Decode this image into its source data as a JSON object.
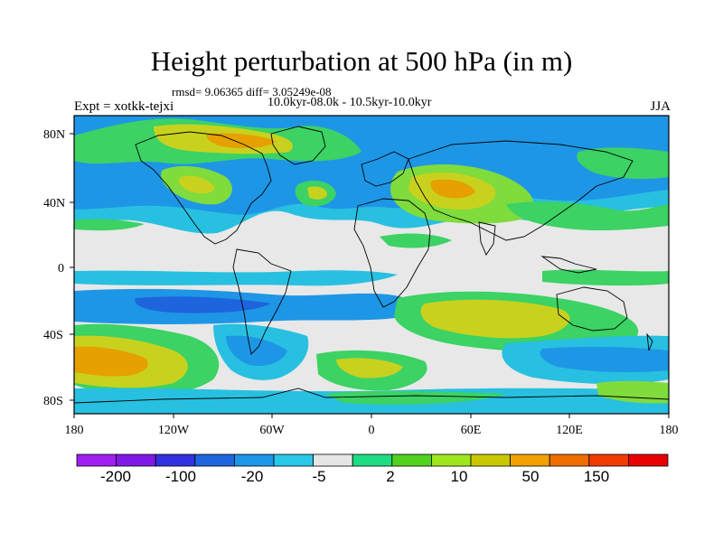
{
  "title": "Height perturbation at 500 hPa (in m)",
  "stats": "rmsd= 9.06365 diff= 3.05249e-08",
  "expt": "Expt = xotkk-tejxi",
  "period": "10.0kyr-08.0k - 10.5kyr-10.0kyr",
  "season": "JJA",
  "lat_ticks": [
    "80N",
    "40N",
    "0",
    "40S",
    "80S"
  ],
  "lon_ticks": [
    "180",
    "120W",
    "60W",
    "0",
    "60E",
    "120E",
    "180"
  ],
  "colorbar": {
    "colors": [
      "#a020f0",
      "#7f1ae6",
      "#3232e0",
      "#1e64dc",
      "#1e96e6",
      "#28c8e6",
      "#e6e6e6",
      "#1edc82",
      "#50d21e",
      "#a0e61e",
      "#c8c800",
      "#f0a000",
      "#f06e00",
      "#f03c00",
      "#e60000"
    ],
    "labels": [
      "-200",
      "-100",
      "-20",
      "-5",
      "2",
      "10",
      "50",
      "150"
    ]
  },
  "palette": {
    "neutral": "#e8e8e8",
    "green": "#3cd264",
    "lightgreen": "#7fdc3c",
    "yellow": "#c8d21e",
    "orange": "#e6a000",
    "lightblue": "#28c0e0",
    "blue": "#1e96e6",
    "darkblue": "#1e64dc"
  }
}
